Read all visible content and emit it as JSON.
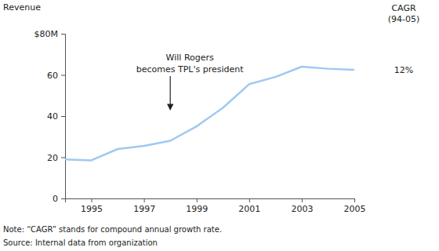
{
  "chart_data": {
    "type": "line",
    "y_label": "Revenue",
    "x": [
      1994,
      1995,
      1996,
      1997,
      1998,
      1999,
      2000,
      2001,
      2002,
      2003,
      2004,
      2005
    ],
    "values": [
      19,
      18.5,
      24,
      25.5,
      28,
      35,
      44,
      55.5,
      59,
      64,
      63,
      62.5
    ],
    "color": "#9ec9f2",
    "xlim": [
      1994,
      2005
    ],
    "xticks": [
      1995,
      1997,
      1999,
      2001,
      2003,
      2005
    ],
    "ylim": [
      0,
      80
    ],
    "yticks": [
      0,
      20,
      40,
      60,
      {
        "value": 80,
        "label": "$80M"
      }
    ],
    "grid": false,
    "annotations": [
      {
        "lines": [
          "Will Rogers",
          "becomes TPL's president"
        ],
        "x": 1998
      }
    ],
    "cagr": {
      "title": [
        "CAGR",
        "(94-05)"
      ],
      "value": 12,
      "value_label": "12%"
    },
    "note": "Note: “CAGR” stands for compound annual growth rate.",
    "source": "Source: Internal data from organization"
  }
}
